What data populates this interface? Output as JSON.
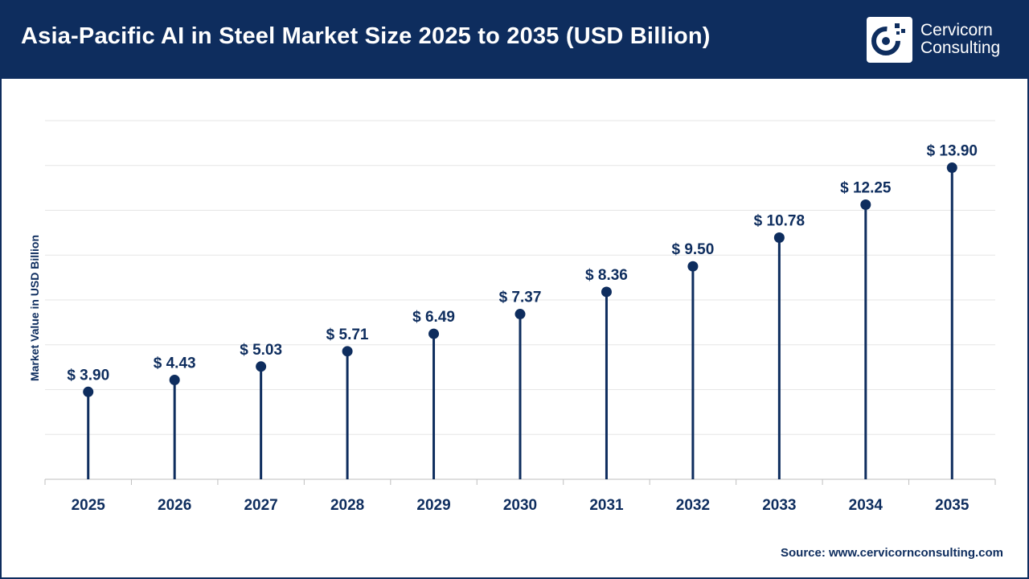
{
  "header": {
    "title": "Asia-Pacific AI in Steel Market Size 2025 to 2035 (USD Billion)",
    "logo_line1": "Cervicorn",
    "logo_line2": "Consulting"
  },
  "colors": {
    "brand": "#0e2d5e",
    "header_text": "#ffffff",
    "grid": "#e6e6e6"
  },
  "chart_data": {
    "type": "lollipop",
    "title": "Asia-Pacific AI in Steel Market Size 2025 to 2035 (USD Billion)",
    "xlabel": "",
    "ylabel": "Market Value in USD Billion",
    "categories": [
      "2025",
      "2026",
      "2027",
      "2028",
      "2029",
      "2030",
      "2031",
      "2032",
      "2033",
      "2034",
      "2035"
    ],
    "values": [
      3.9,
      4.43,
      5.03,
      5.71,
      6.49,
      7.37,
      8.36,
      9.5,
      10.78,
      12.25,
      13.9
    ],
    "value_labels": [
      "$ 3.90",
      "$ 4.43",
      "$ 5.03",
      "$ 5.71",
      "$ 6.49",
      "$ 7.37",
      "$ 8.36",
      "$ 9.50",
      "$ 10.78",
      "$ 12.25",
      "$ 13.90"
    ],
    "ylim": [
      0,
      16
    ],
    "grid": true,
    "legend": "none"
  },
  "footer": {
    "source": "Source: www.cervicornconsulting.com"
  }
}
